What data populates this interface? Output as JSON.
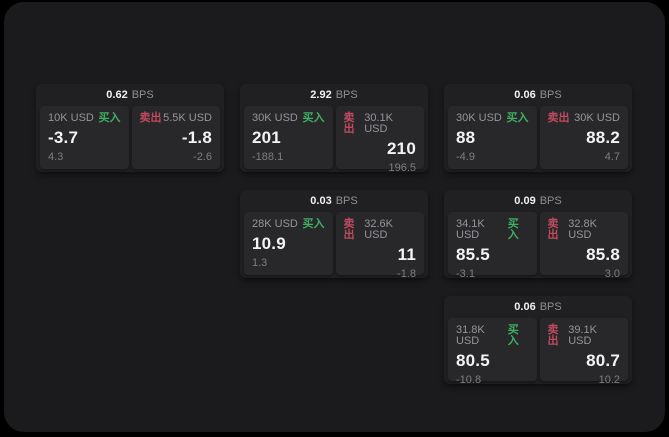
{
  "app": {
    "bps_label": "BPS",
    "buy_label": "买入",
    "sell_label": "卖出"
  },
  "colors": {
    "background": "#000000",
    "panel_bg": "#1b1b1d",
    "card_bg": "#202023",
    "tile_bg": "#28282b",
    "buy_green": "#3eb061",
    "sell_red": "#c04a5e",
    "text_primary": "#f3f3f5",
    "text_secondary": "#95959a"
  },
  "cards": [
    {
      "bps": "0.62",
      "buy": {
        "amount": "10K USD",
        "value": "-3.7",
        "sub_value": "4.3"
      },
      "sell": {
        "amount": "5.5K USD",
        "value": "-1.8",
        "sub_value": "-2.6"
      }
    },
    {
      "bps": "2.92",
      "buy": {
        "amount": "30K USD",
        "value": "201",
        "sub_value": "-188.1"
      },
      "sell": {
        "amount": "30.1K USD",
        "value": "210",
        "sub_value": "196.5"
      }
    },
    {
      "bps": "0.06",
      "buy": {
        "amount": "30K USD",
        "value": "88",
        "sub_value": "-4.9"
      },
      "sell": {
        "amount": "30K USD",
        "value": "88.2",
        "sub_value": "4.7"
      }
    },
    {
      "bps": "0.03",
      "buy": {
        "amount": "28K USD",
        "value": "10.9",
        "sub_value": "1.3"
      },
      "sell": {
        "amount": "32.6K USD",
        "value": "11",
        "sub_value": "-1.8"
      }
    },
    {
      "bps": "0.09",
      "buy": {
        "amount": "34.1K USD",
        "value": "85.5",
        "sub_value": "-3.1"
      },
      "sell": {
        "amount": "32.8K USD",
        "value": "85.8",
        "sub_value": "3.0"
      }
    },
    {
      "bps": "0.06",
      "buy": {
        "amount": "31.8K USD",
        "value": "80.5",
        "sub_value": "-10.8"
      },
      "sell": {
        "amount": "39.1K USD",
        "value": "80.7",
        "sub_value": "10.2"
      }
    }
  ]
}
